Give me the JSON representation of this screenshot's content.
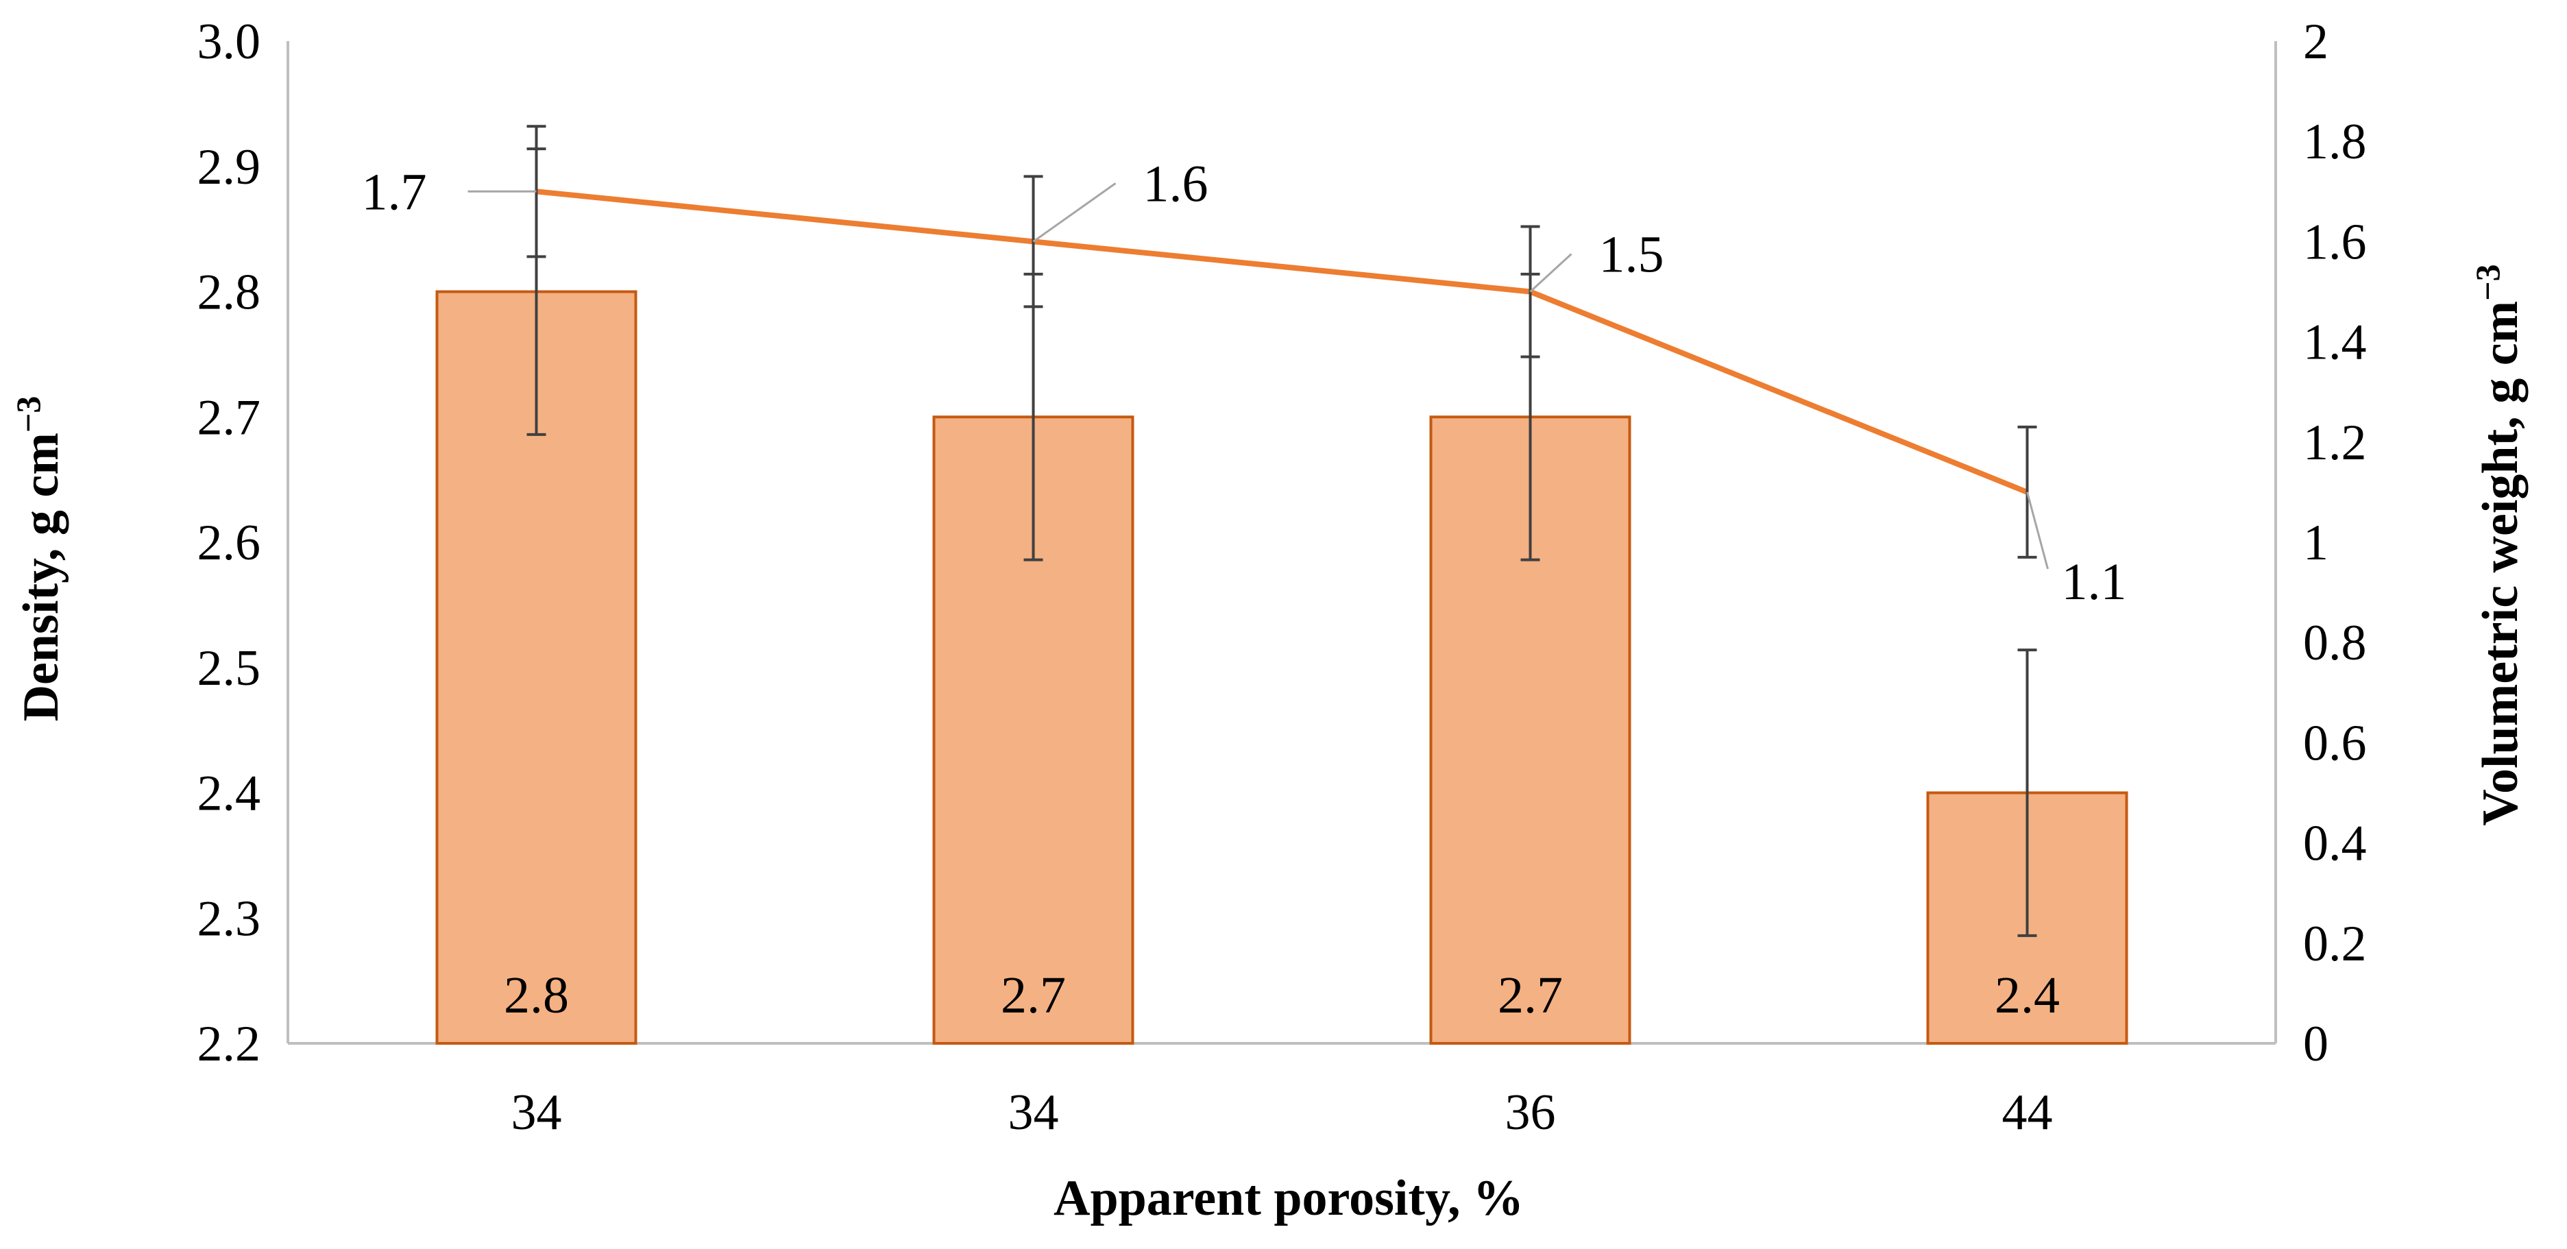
{
  "chart_data": {
    "type": "bar",
    "categories": [
      "34",
      "34",
      "36",
      "44"
    ],
    "xlabel": "Apparent porosity, %",
    "ylabel": "Density, g cm",
    "ylabel_sup": "−3",
    "y2label": "Volumetric weight, g cm",
    "y2label_sup": "−3",
    "ylim": [
      2.2,
      3.0
    ],
    "y2lim": [
      0,
      2
    ],
    "yticks": [
      "2.2",
      "2.3",
      "2.4",
      "2.5",
      "2.6",
      "2.7",
      "2.8",
      "2.9",
      "3.0"
    ],
    "y2ticks": [
      "0",
      "0.2",
      "0.4",
      "0.6",
      "0.8",
      "1",
      "1.2",
      "1.4",
      "1.6",
      "1.8",
      "2"
    ],
    "grid": false,
    "series": [
      {
        "type": "bar",
        "axis": "left",
        "values": [
          2.8,
          2.7,
          2.7,
          2.4
        ],
        "labels": [
          "2.8",
          "2.7",
          "2.7",
          "2.4"
        ],
        "error": [
          0.114,
          0.114,
          0.114,
          0.114
        ],
        "color": "#f4b183",
        "edge_color": "#c55a11"
      },
      {
        "type": "line",
        "axis": "right",
        "values": [
          1.7,
          1.6,
          1.5,
          1.1
        ],
        "labels": [
          "1.7",
          "1.6",
          "1.5",
          "1.1"
        ],
        "error": [
          0.13,
          0.13,
          0.13,
          0.13
        ],
        "color": "#ed7d31"
      }
    ]
  }
}
